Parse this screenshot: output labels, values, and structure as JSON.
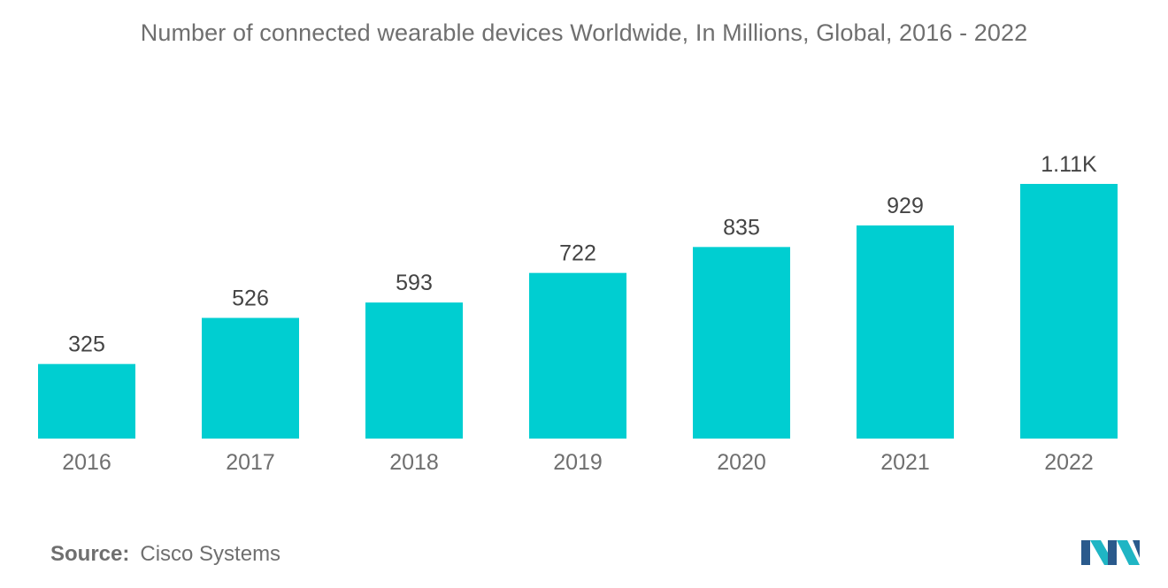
{
  "source": {
    "label": "Source:",
    "value": "Cisco Systems"
  },
  "colors": {
    "bar": "#00ced1",
    "text": "#6f6f6f",
    "value_label": "#444444",
    "logo_dark": "#2a5a8c",
    "logo_light": "#1fb5c4"
  },
  "chart_data": {
    "type": "bar",
    "title": "Number of connected wearable devices Worldwide, In Millions, Global, 2016 - 2022",
    "categories": [
      "2016",
      "2017",
      "2018",
      "2019",
      "2020",
      "2021",
      "2022"
    ],
    "values": [
      325,
      526,
      593,
      722,
      835,
      929,
      1110
    ],
    "value_labels": [
      "325",
      "526",
      "593",
      "722",
      "835",
      "929",
      "1.11K"
    ],
    "ylim": [
      0,
      1110
    ],
    "xlabel": "",
    "ylabel": "",
    "grid": false,
    "legend": "none"
  }
}
